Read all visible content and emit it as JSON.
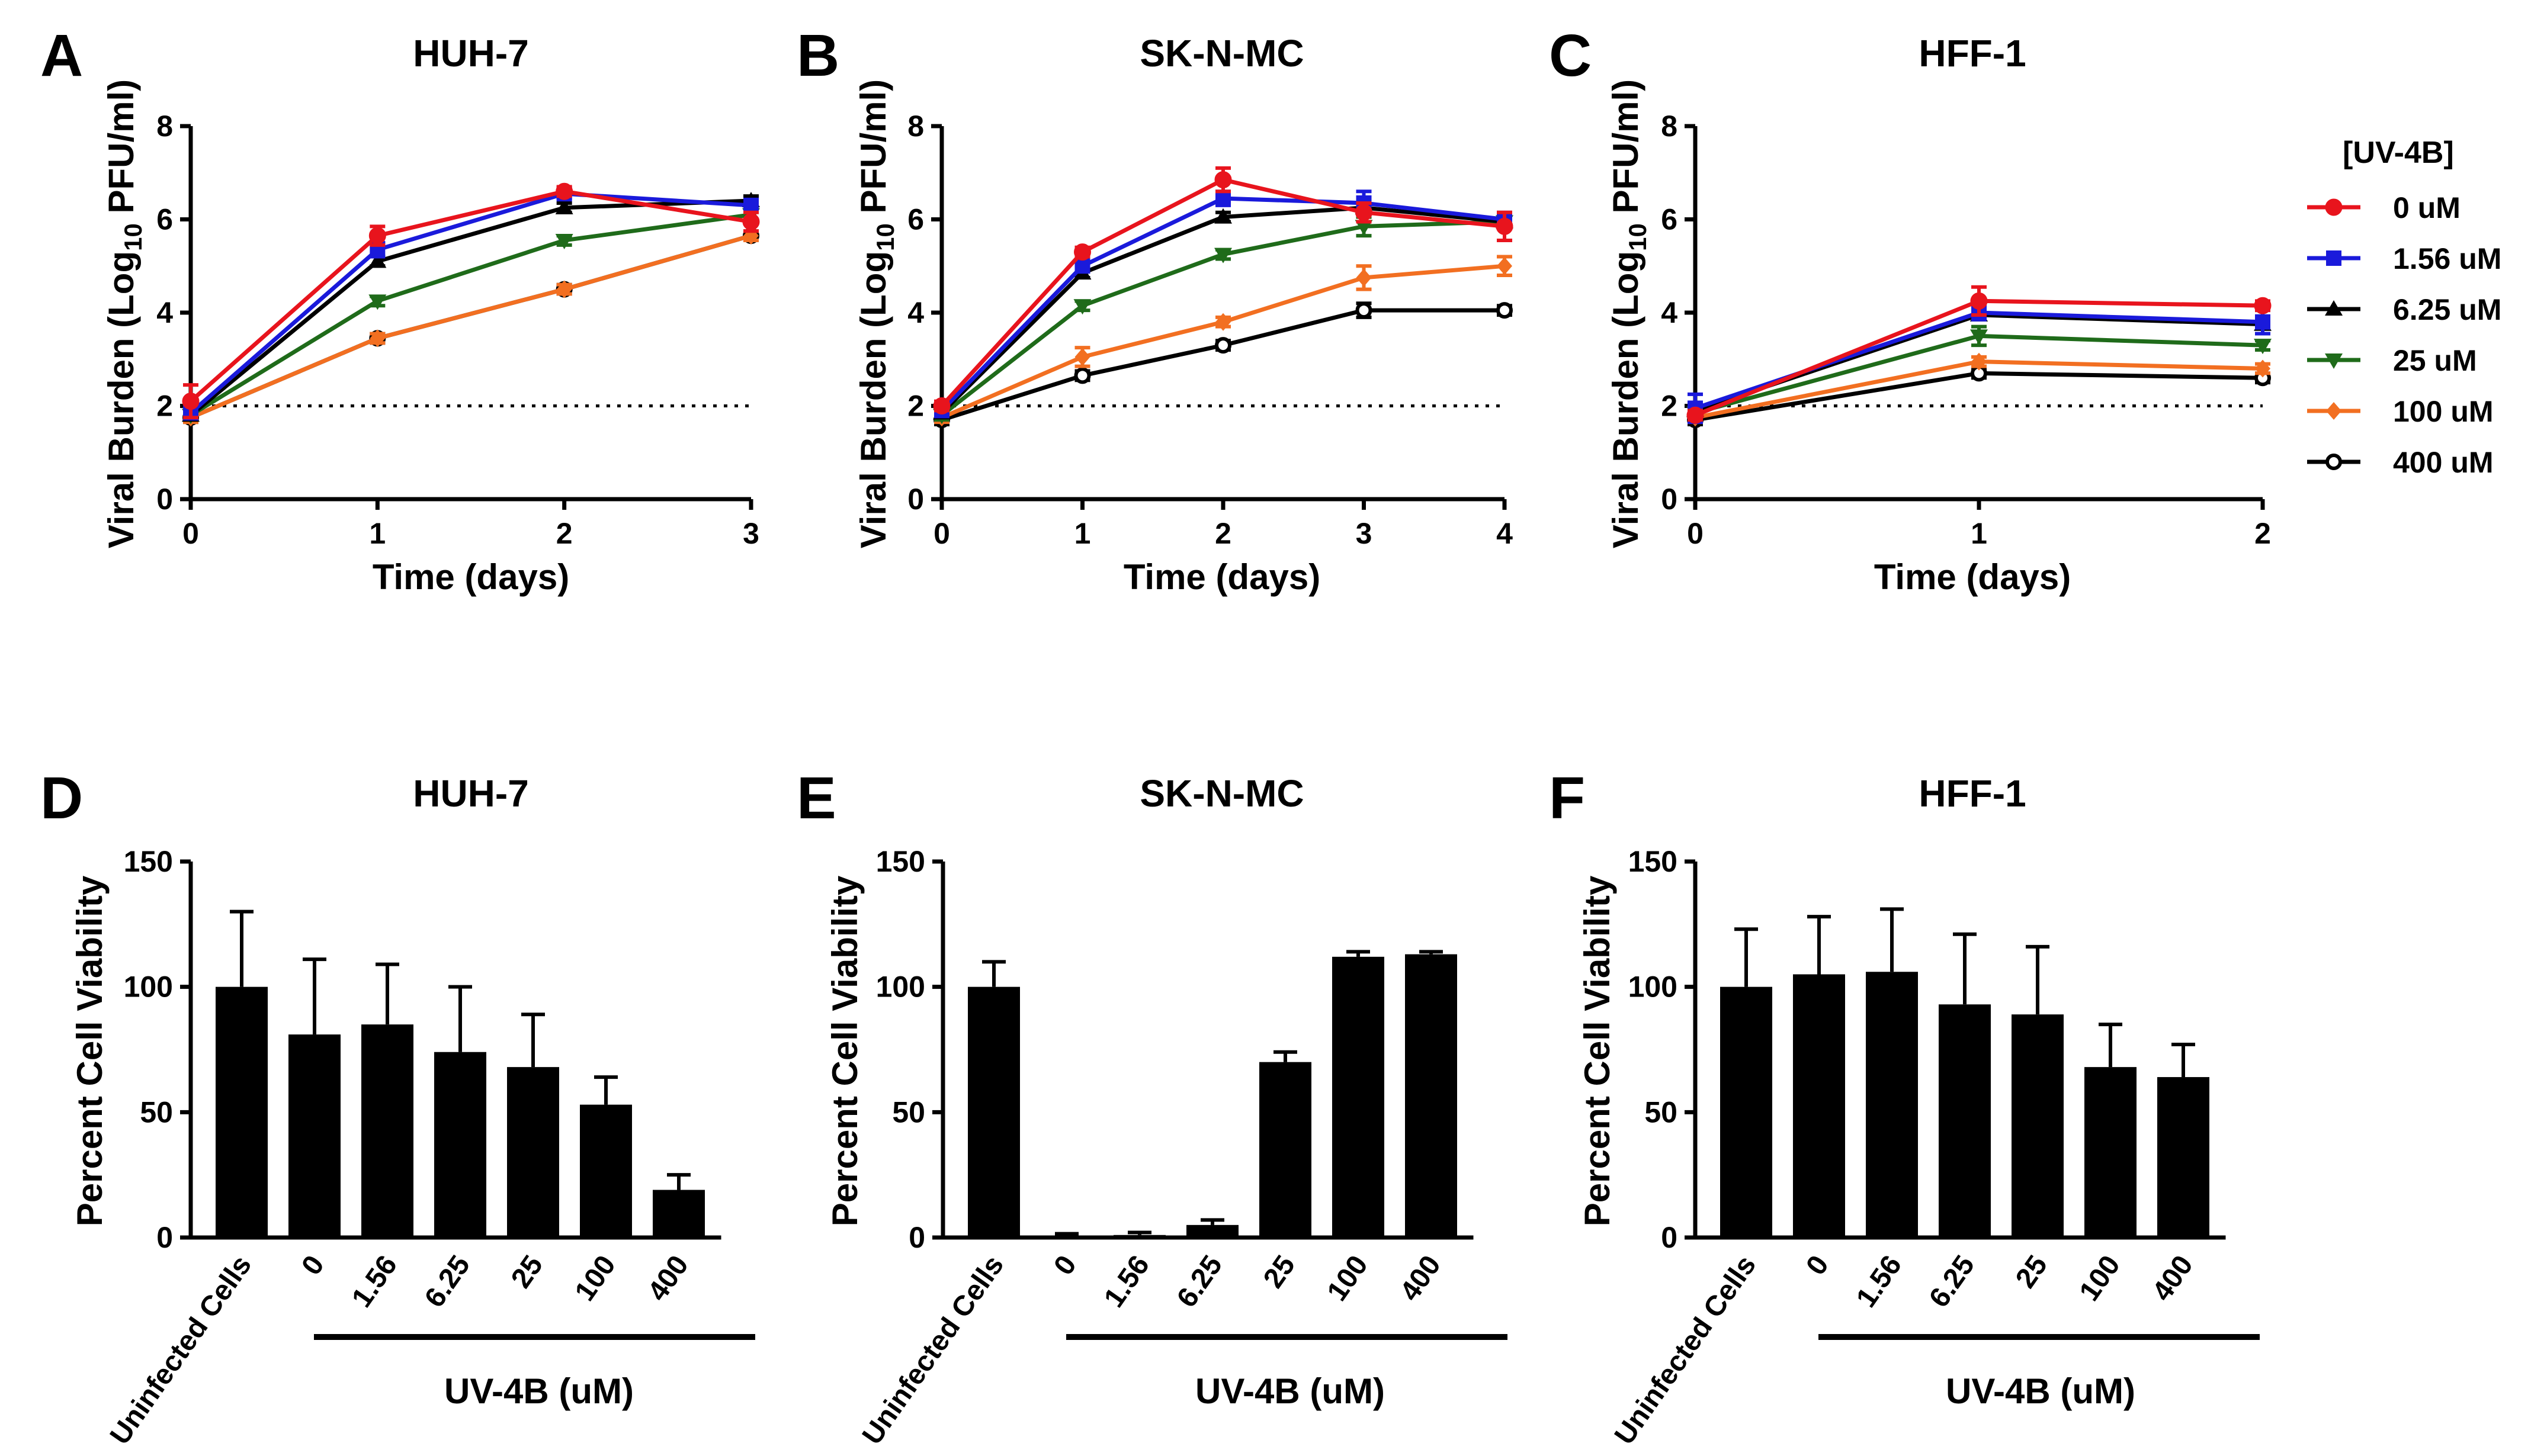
{
  "figure": {
    "legend": {
      "title": "[UV-4B]",
      "entries": [
        {
          "label": "0 uM",
          "color": "#e8141d",
          "marker": "circle-filled"
        },
        {
          "label": "1.56 uM",
          "color": "#1a1adb",
          "marker": "square-filled"
        },
        {
          "label": "6.25 uM",
          "color": "#000000",
          "marker": "triangle-up"
        },
        {
          "label": "25 uM",
          "color": "#1f6b1a",
          "marker": "triangle-down"
        },
        {
          "label": "100 uM",
          "color": "#f26f21",
          "marker": "diamond"
        },
        {
          "label": "400 uM",
          "color": "#000000",
          "marker": "circle-open"
        }
      ]
    }
  },
  "chart_data": [
    {
      "panel": "A",
      "title": "HUH-7",
      "type": "line",
      "xlabel": "Time (days)",
      "ylabel": "Viral Burden (Log10 PFU/ml)",
      "ylabel_parts": [
        "Viral Burden (Log",
        "10",
        " PFU/ml)"
      ],
      "xlim": [
        0,
        3
      ],
      "ylim": [
        0,
        8
      ],
      "xticks": [
        "0",
        "1",
        "2",
        "3"
      ],
      "yticks": [
        "0",
        "2",
        "4",
        "6",
        "8"
      ],
      "reference_line": 2,
      "x": [
        0,
        1,
        2,
        3
      ],
      "series": [
        {
          "name": "0 uM",
          "values": [
            2.1,
            5.65,
            6.6,
            5.95
          ],
          "errors": [
            0.35,
            0.2,
            0.1,
            0.2
          ]
        },
        {
          "name": "1.56 uM",
          "values": [
            1.85,
            5.35,
            6.55,
            6.3
          ],
          "errors": [
            0.1,
            0.15,
            0.1,
            0.1
          ]
        },
        {
          "name": "6.25 uM",
          "values": [
            1.8,
            5.1,
            6.25,
            6.4
          ],
          "errors": [
            0.1,
            0.1,
            0.1,
            0.1
          ]
        },
        {
          "name": "25 uM",
          "values": [
            1.8,
            4.25,
            5.55,
            6.1
          ],
          "errors": [
            0.1,
            0.1,
            0.1,
            0.1
          ]
        },
        {
          "name": "100 uM",
          "values": [
            1.75,
            3.45,
            4.5,
            5.65
          ],
          "errors": [
            0.1,
            0.1,
            0.1,
            0.1
          ]
        },
        {
          "name": "400 uM",
          "values": [
            1.75,
            3.45,
            4.5,
            5.65
          ],
          "errors": [
            0.1,
            0.1,
            0.1,
            0.1
          ]
        }
      ]
    },
    {
      "panel": "B",
      "title": "SK-N-MC",
      "type": "line",
      "xlabel": "Time (days)",
      "ylabel": "Viral Burden (Log10 PFU/ml)",
      "ylabel_parts": [
        "Viral Burden (Log",
        "10",
        " PFU/ml)"
      ],
      "xlim": [
        0,
        4
      ],
      "ylim": [
        0,
        8
      ],
      "xticks": [
        "0",
        "1",
        "2",
        "3",
        "4"
      ],
      "yticks": [
        "0",
        "2",
        "4",
        "6",
        "8"
      ],
      "reference_line": 2,
      "x": [
        0,
        1,
        2,
        3,
        4
      ],
      "series": [
        {
          "name": "0 uM",
          "values": [
            2.0,
            5.3,
            6.85,
            6.15,
            5.85
          ],
          "errors": [
            0.1,
            0.1,
            0.25,
            0.2,
            0.3
          ]
        },
        {
          "name": "1.56 uM",
          "values": [
            1.9,
            5.0,
            6.45,
            6.35,
            6.0
          ],
          "errors": [
            0.1,
            0.1,
            0.15,
            0.25,
            0.15
          ]
        },
        {
          "name": "6.25 uM",
          "values": [
            1.85,
            4.85,
            6.05,
            6.25,
            5.95
          ],
          "errors": [
            0.1,
            0.1,
            0.1,
            0.1,
            0.1
          ]
        },
        {
          "name": "25 uM",
          "values": [
            1.8,
            4.15,
            5.25,
            5.85,
            5.95
          ],
          "errors": [
            0.1,
            0.1,
            0.1,
            0.2,
            0.1
          ]
        },
        {
          "name": "100 uM",
          "values": [
            1.75,
            3.05,
            3.8,
            4.75,
            5.0
          ],
          "errors": [
            0.1,
            0.2,
            0.1,
            0.25,
            0.2
          ]
        },
        {
          "name": "400 uM",
          "values": [
            1.7,
            2.65,
            3.3,
            4.05,
            4.05
          ],
          "errors": [
            0.1,
            0.1,
            0.1,
            0.15,
            0.1
          ]
        }
      ]
    },
    {
      "panel": "C",
      "title": "HFF-1",
      "type": "line",
      "xlabel": "Time (days)",
      "ylabel": "Viral Burden (Log10 PFU/ml)",
      "ylabel_parts": [
        "Viral Burden (Log",
        "10",
        " PFU/ml)"
      ],
      "xlim": [
        0,
        2
      ],
      "ylim": [
        0,
        8
      ],
      "xticks": [
        "0",
        "1",
        "2"
      ],
      "yticks": [
        "0",
        "2",
        "4",
        "6",
        "8"
      ],
      "reference_line": 2,
      "x": [
        0,
        1,
        2
      ],
      "series": [
        {
          "name": "0 uM",
          "values": [
            1.8,
            4.25,
            4.15
          ],
          "errors": [
            0.1,
            0.3,
            0.1
          ]
        },
        {
          "name": "1.56 uM",
          "values": [
            1.95,
            4.0,
            3.8
          ],
          "errors": [
            0.3,
            0.15,
            0.25
          ]
        },
        {
          "name": "6.25 uM",
          "values": [
            1.9,
            3.95,
            3.75
          ],
          "errors": [
            0.1,
            0.1,
            0.1
          ]
        },
        {
          "name": "25 uM",
          "values": [
            1.85,
            3.5,
            3.3
          ],
          "errors": [
            0.1,
            0.2,
            0.1
          ]
        },
        {
          "name": "100 uM",
          "values": [
            1.75,
            2.95,
            2.8
          ],
          "errors": [
            0.1,
            0.1,
            0.1
          ]
        },
        {
          "name": "400 uM",
          "values": [
            1.7,
            2.7,
            2.6
          ],
          "errors": [
            0.1,
            0.1,
            0.1
          ]
        }
      ]
    },
    {
      "panel": "D",
      "title": "HUH-7",
      "type": "bar",
      "xlabel": "UV-4B (uM)",
      "ylabel": "Percent Cell Viability",
      "ylim": [
        0,
        150
      ],
      "yticks": [
        "0",
        "50",
        "100",
        "150"
      ],
      "categories": [
        "Uninfected Cells",
        "0",
        "1.56",
        "6.25",
        "25",
        "100",
        "400"
      ],
      "values": [
        100,
        81,
        85,
        74,
        68,
        53,
        19
      ],
      "errors": [
        30,
        30,
        24,
        26,
        21,
        11,
        6
      ]
    },
    {
      "panel": "E",
      "title": "SK-N-MC",
      "type": "bar",
      "xlabel": "UV-4B (uM)",
      "ylabel": "Percent Cell Viability",
      "ylim": [
        0,
        150
      ],
      "yticks": [
        "0",
        "50",
        "100",
        "150"
      ],
      "categories": [
        "Uninfected Cells",
        "0",
        "1.56",
        "6.25",
        "25",
        "100",
        "400"
      ],
      "values": [
        100,
        0.5,
        1,
        5,
        70,
        112,
        113
      ],
      "errors": [
        10,
        1,
        1,
        2,
        4,
        2,
        1
      ]
    },
    {
      "panel": "F",
      "title": "HFF-1",
      "type": "bar",
      "xlabel": "UV-4B (uM)",
      "ylabel": "Percent Cell Viability",
      "ylim": [
        0,
        150
      ],
      "yticks": [
        "0",
        "50",
        "100",
        "150"
      ],
      "categories": [
        "Uninfected Cells",
        "0",
        "1.56",
        "6.25",
        "25",
        "100",
        "400"
      ],
      "values": [
        100,
        105,
        106,
        93,
        89,
        68,
        64
      ],
      "errors": [
        23,
        23,
        25,
        28,
        27,
        17,
        13
      ]
    }
  ]
}
